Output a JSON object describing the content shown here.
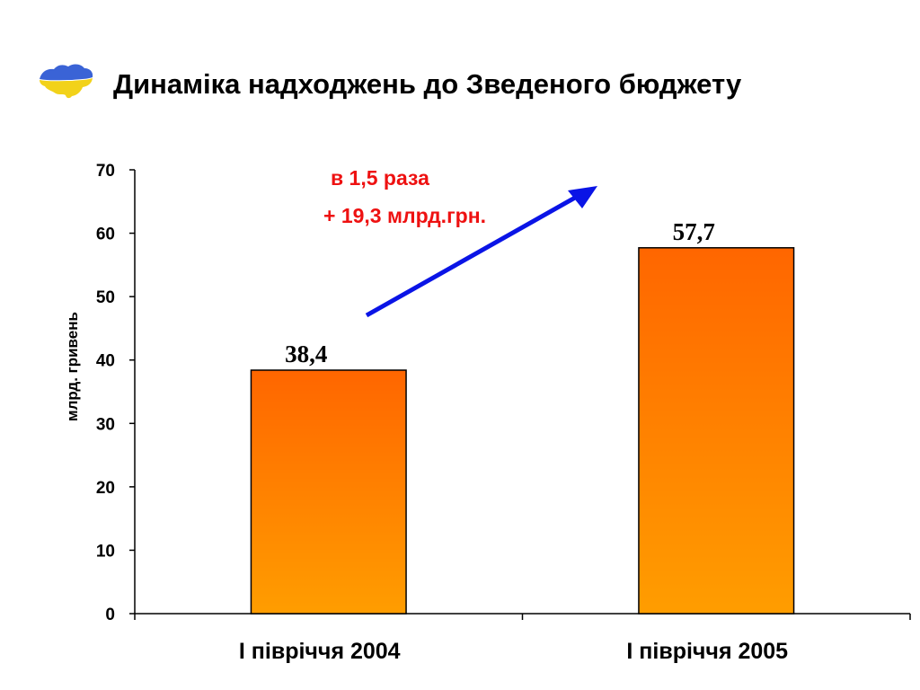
{
  "title": "Динаміка надходжень до Зведеного бюджету",
  "logo_icon": "ukraine-map-icon",
  "colors": {
    "bar_top": "#ff6600",
    "bar_bottom": "#ff9d00",
    "arrow": "#0a14e6",
    "annotation": "#ee1111",
    "logo_blue": "#3a63d6",
    "logo_yellow": "#f2d21a"
  },
  "annotations": {
    "ratio": "в 1,5 раза",
    "delta": "+ 19,3 млрд.грн."
  },
  "chart_data": {
    "type": "bar",
    "categories": [
      "І півріччя 2004",
      "І півріччя 2005"
    ],
    "values": [
      38.4,
      57.7
    ],
    "value_labels": [
      "38,4",
      "57,7"
    ],
    "ylabel": "млрд. гривень",
    "ylim": [
      0,
      70
    ],
    "yticks": [
      0,
      10,
      20,
      30,
      40,
      50,
      60,
      70
    ],
    "grid": false,
    "legend": "none"
  }
}
